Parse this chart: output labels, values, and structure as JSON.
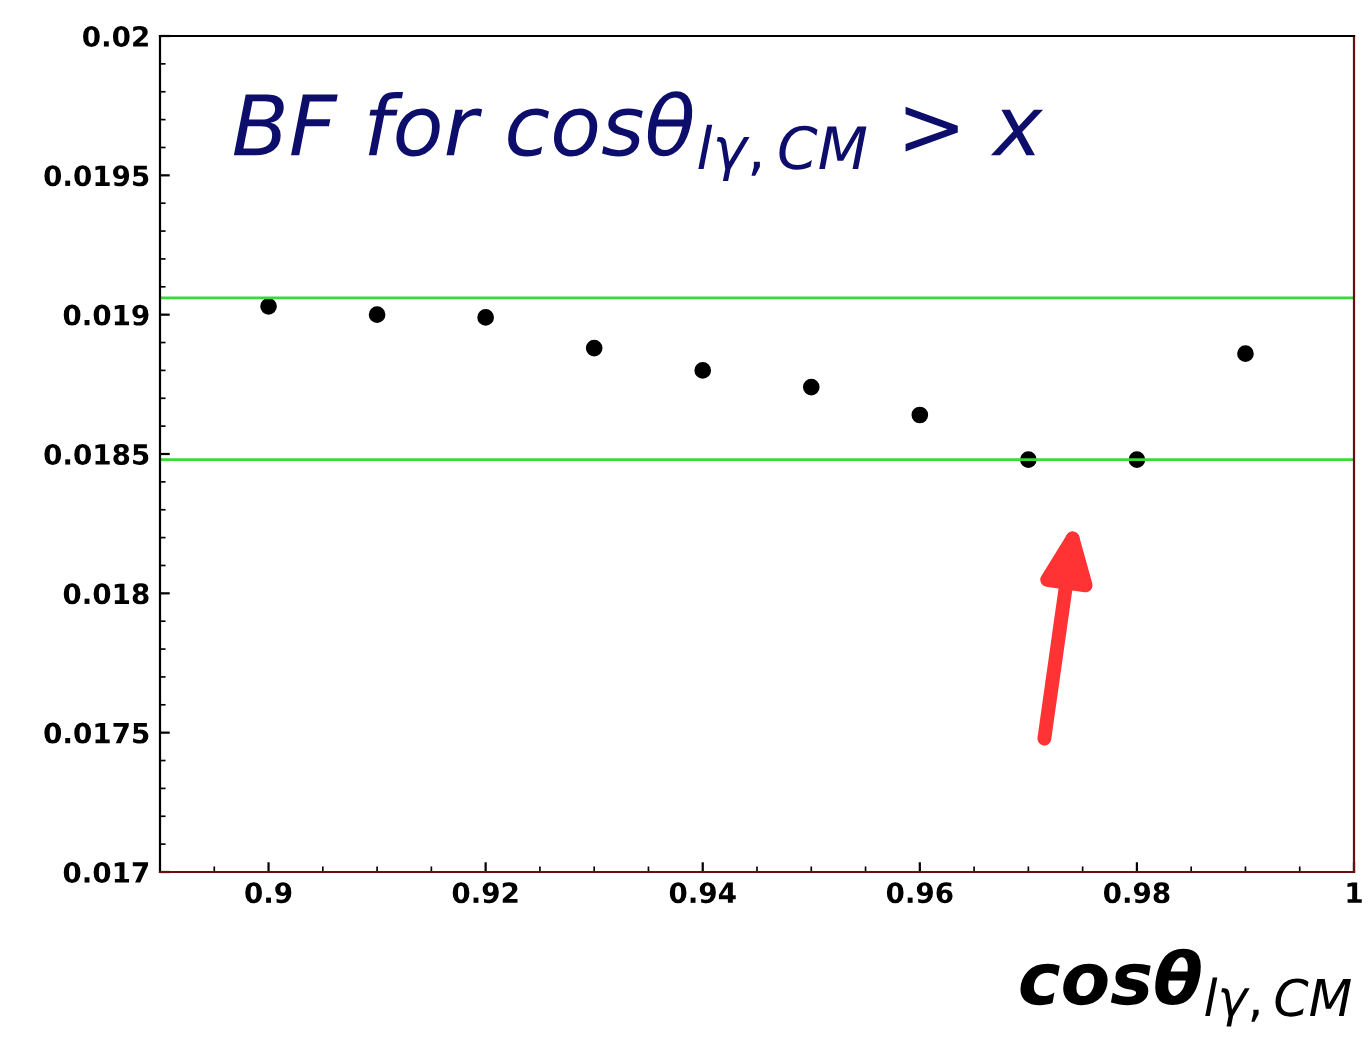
{
  "chart_data": {
    "type": "scatter",
    "title": "BF for cosθ$_{lγ,CM}$ > x",
    "xlabel": "cosθ$_{lγ,CM}$",
    "x": [
      0.9,
      0.91,
      0.92,
      0.93,
      0.94,
      0.95,
      0.96,
      0.97,
      0.98,
      0.99
    ],
    "values": [
      0.01903,
      0.019,
      0.01899,
      0.01888,
      0.0188,
      0.01874,
      0.01864,
      0.01848,
      0.01848,
      0.01886
    ],
    "color": "#000000",
    "marker": "circle",
    "xlim": [
      0.89,
      1.0
    ],
    "xticks": [
      0.9,
      0.92,
      0.94,
      0.96,
      0.98,
      1
    ],
    "ylim": [
      0.017,
      0.02
    ],
    "yticks": [
      0.017,
      0.0175,
      0.018,
      0.0185,
      0.019,
      0.0195,
      0.02
    ],
    "ref_lines": [
      {
        "axis": "y",
        "value": 0.01906,
        "color": "#33dd33"
      },
      {
        "axis": "y",
        "value": 0.01848,
        "color": "#33dd33"
      }
    ],
    "grid": false
  }
}
